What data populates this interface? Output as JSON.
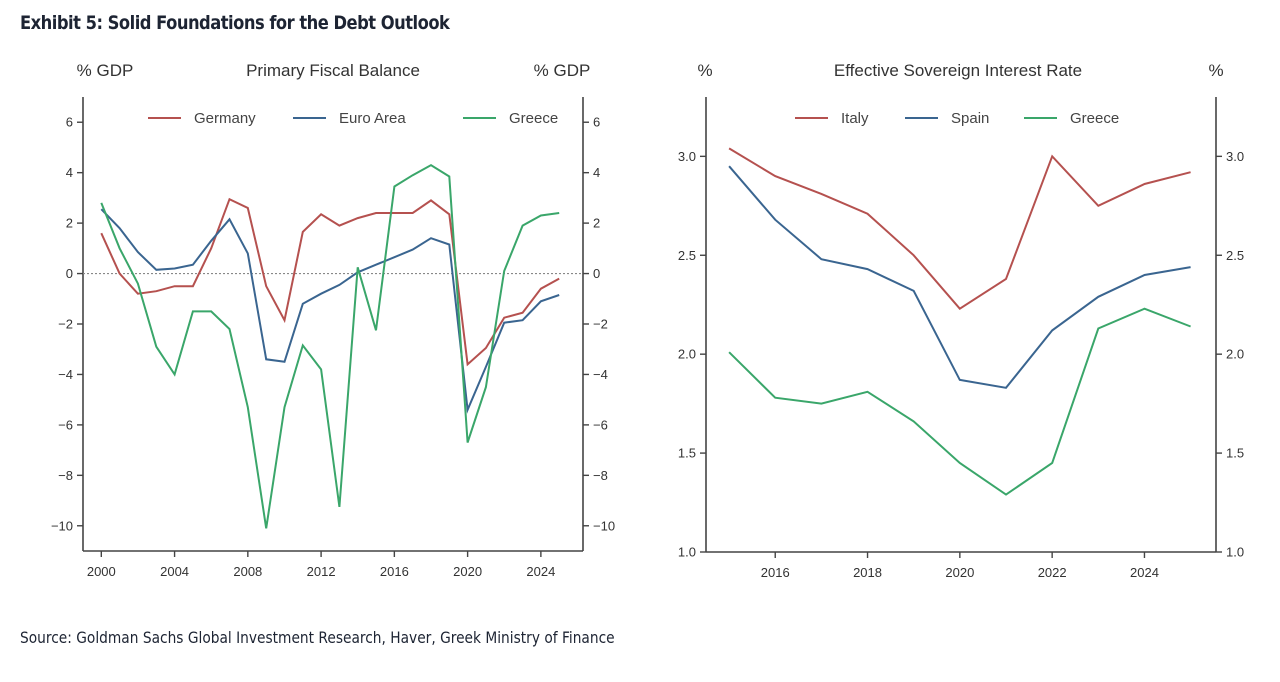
{
  "exhibit_title": "Exhibit 5: Solid Foundations for the Debt Outlook",
  "source": "Source: Goldman Sachs Global Investment Research, Haver, Greek Ministry of Finance",
  "colors": {
    "red": "#b5514f",
    "blue": "#3a6590",
    "green": "#3aa66a",
    "axis": "#444444",
    "zero_line": "#888888"
  },
  "chart_data": [
    {
      "type": "line",
      "title": "Primary Fiscal Balance",
      "ylabel_left": "% GDP",
      "ylabel_right": "% GDP",
      "xlabel": "",
      "xlim": [
        1999,
        2026.3
      ],
      "ylim": [
        -11,
        7
      ],
      "xticks": [
        2000,
        2004,
        2008,
        2012,
        2016,
        2020,
        2024
      ],
      "yticks": [
        6,
        4,
        2,
        0,
        -2,
        -4,
        -6,
        -8,
        -10
      ],
      "ytick_labels": [
        "6",
        "4",
        "2",
        "0",
        "−2",
        "−4",
        "−6",
        "−8",
        "−10"
      ],
      "zero_line": true,
      "legend": "top-center",
      "x": [
        2000,
        2001,
        2002,
        2003,
        2004,
        2005,
        2006,
        2007,
        2008,
        2009,
        2010,
        2011,
        2012,
        2013,
        2014,
        2015,
        2016,
        2017,
        2018,
        2019,
        2020,
        2021,
        2022,
        2023,
        2024,
        2025
      ],
      "series": [
        {
          "name": "Germany",
          "color": "#b5514f",
          "values": [
            1.6,
            0.0,
            -0.8,
            -0.7,
            -0.5,
            -0.5,
            1.0,
            2.95,
            2.6,
            -0.5,
            -1.85,
            1.65,
            2.35,
            1.9,
            2.2,
            2.4,
            2.4,
            2.4,
            2.9,
            2.35,
            -3.6,
            -2.95,
            -1.75,
            -1.55,
            -0.6,
            -0.2
          ]
        },
        {
          "name": "Euro Area",
          "color": "#3a6590",
          "values": [
            2.55,
            1.8,
            0.85,
            0.15,
            0.2,
            0.35,
            1.3,
            2.15,
            0.8,
            -3.4,
            -3.5,
            -1.2,
            -0.8,
            -0.45,
            0.05,
            0.35,
            0.65,
            0.95,
            1.4,
            1.15,
            -5.4,
            -3.7,
            -1.95,
            -1.85,
            -1.1,
            -0.85
          ]
        },
        {
          "name": "Greece",
          "color": "#3aa66a",
          "values": [
            2.8,
            1.0,
            -0.4,
            -2.9,
            -4.0,
            -1.5,
            -1.5,
            -2.2,
            -5.3,
            -10.1,
            -5.3,
            -2.85,
            -3.8,
            -9.25,
            0.25,
            -2.25,
            3.45,
            3.9,
            4.3,
            3.85,
            -6.7,
            -4.5,
            0.1,
            1.9,
            2.3,
            2.4
          ]
        }
      ]
    },
    {
      "type": "line",
      "title": "Effective Sovereign Interest Rate",
      "ylabel_left": "%",
      "ylabel_right": "%",
      "xlabel": "",
      "xlim": [
        2014.5,
        2025.55
      ],
      "ylim": [
        1.0,
        3.3
      ],
      "xticks": [
        2016,
        2018,
        2020,
        2022,
        2024
      ],
      "yticks": [
        1.0,
        1.5,
        2.0,
        2.5,
        3.0
      ],
      "ytick_labels": [
        "1.0",
        "1.5",
        "2.0",
        "2.5",
        "3.0"
      ],
      "zero_line": false,
      "legend": "top-center",
      "x": [
        2015,
        2016,
        2017,
        2018,
        2019,
        2020,
        2021,
        2022,
        2023,
        2024,
        2025
      ],
      "series": [
        {
          "name": "Italy",
          "color": "#b5514f",
          "values": [
            3.04,
            2.9,
            2.81,
            2.71,
            2.5,
            2.23,
            2.38,
            3.0,
            2.75,
            2.86,
            2.92
          ]
        },
        {
          "name": "Spain",
          "color": "#3a6590",
          "values": [
            2.95,
            2.68,
            2.48,
            2.43,
            2.32,
            1.87,
            1.83,
            2.12,
            2.29,
            2.4,
            2.44
          ]
        },
        {
          "name": "Greece",
          "color": "#3aa66a",
          "values": [
            2.01,
            1.78,
            1.75,
            1.81,
            1.66,
            1.45,
            1.29,
            1.45,
            2.13,
            2.23,
            2.14
          ]
        }
      ]
    }
  ]
}
